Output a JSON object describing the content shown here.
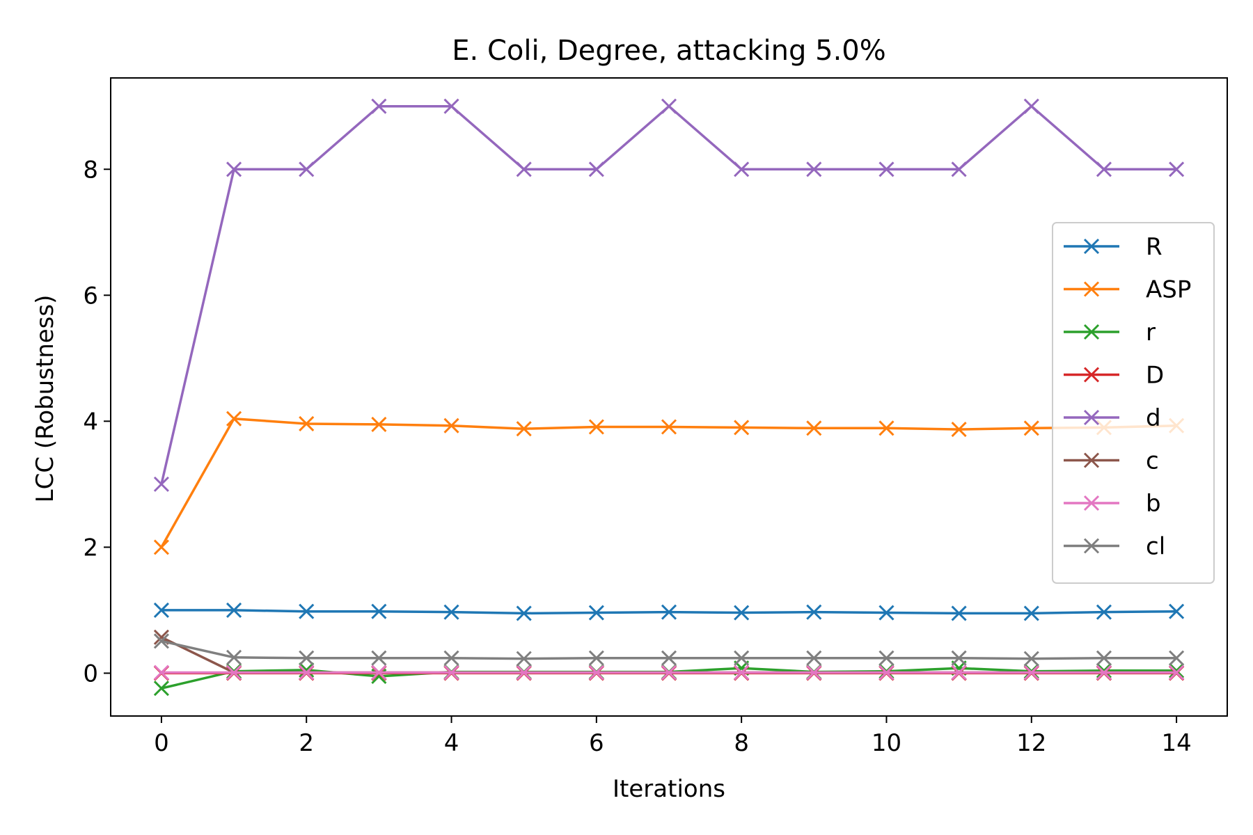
{
  "chart_data": {
    "type": "line",
    "title": "E. Coli, Degree, attacking 5.0%",
    "xlabel": "Iterations",
    "ylabel": "LCC (Robustness)",
    "xlim": [
      -0.7,
      14.7
    ],
    "ylim": [
      -0.68,
      9.45
    ],
    "xticks": [
      0,
      2,
      4,
      6,
      8,
      10,
      12,
      14
    ],
    "yticks": [
      0,
      2,
      4,
      6,
      8
    ],
    "grid": false,
    "legend_position": "center-right",
    "marker": "x",
    "x": [
      0,
      1,
      2,
      3,
      4,
      5,
      6,
      7,
      8,
      9,
      10,
      11,
      12,
      13,
      14
    ],
    "series": [
      {
        "name": "R",
        "color": "#1f77b4",
        "values": [
          1.0,
          1.0,
          0.98,
          0.98,
          0.97,
          0.95,
          0.96,
          0.97,
          0.96,
          0.97,
          0.96,
          0.95,
          0.95,
          0.97,
          0.98
        ]
      },
      {
        "name": "ASP",
        "color": "#ff7f0e",
        "values": [
          2.0,
          4.04,
          3.96,
          3.95,
          3.93,
          3.88,
          3.91,
          3.91,
          3.9,
          3.89,
          3.89,
          3.87,
          3.89,
          3.9,
          3.93
        ]
      },
      {
        "name": "r",
        "color": "#2ca02c",
        "values": [
          -0.24,
          0.03,
          0.05,
          -0.05,
          0.02,
          0.02,
          0.02,
          0.02,
          0.08,
          0.02,
          0.03,
          0.08,
          0.03,
          0.04,
          0.04
        ]
      },
      {
        "name": "D",
        "color": "#d62728",
        "values": [
          0.0,
          0.0,
          0.0,
          0.0,
          0.0,
          0.0,
          0.0,
          0.0,
          0.0,
          0.0,
          0.0,
          0.0,
          0.0,
          0.0,
          0.0
        ]
      },
      {
        "name": "d",
        "color": "#9467bd",
        "values": [
          3,
          8,
          8,
          9,
          9,
          8,
          8,
          9,
          8,
          8,
          8,
          8,
          9,
          8,
          8
        ]
      },
      {
        "name": "c",
        "color": "#8c564b",
        "values": [
          0.57,
          0.01,
          0.01,
          0.01,
          0.01,
          0.01,
          0.01,
          0.01,
          0.01,
          0.01,
          0.01,
          0.01,
          0.01,
          0.01,
          0.01
        ]
      },
      {
        "name": "b",
        "color": "#e377c2",
        "values": [
          0.01,
          0.01,
          0.01,
          0.01,
          0.01,
          0.01,
          0.01,
          0.01,
          0.01,
          0.01,
          0.01,
          0.01,
          0.01,
          0.01,
          0.01
        ]
      },
      {
        "name": "cl",
        "color": "#7f7f7f",
        "values": [
          0.51,
          0.25,
          0.24,
          0.24,
          0.24,
          0.23,
          0.24,
          0.24,
          0.24,
          0.24,
          0.24,
          0.24,
          0.23,
          0.24,
          0.24
        ]
      }
    ]
  }
}
